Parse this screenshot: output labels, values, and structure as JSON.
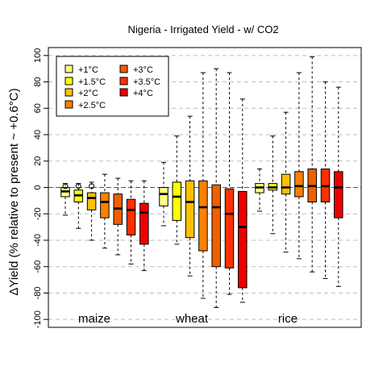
{
  "chart_data": {
    "type": "box",
    "title": "Nigeria - Irrigated Yield - w/ CO2",
    "ylabel": "ΔYield (% relative to present ~ +0.6°C)",
    "xlabel": "",
    "ylim": [
      -106,
      106
    ],
    "yticks": [
      100,
      80,
      60,
      40,
      20,
      0,
      -20,
      -40,
      -60,
      -80,
      -100
    ],
    "grid": "horizontal dashed",
    "legend_position": "top-left",
    "series": [
      {
        "name": "+1°C",
        "color": "#FFFF80"
      },
      {
        "name": "+1.5°C",
        "color": "#FFFF00"
      },
      {
        "name": "+2°C",
        "color": "#FFC000"
      },
      {
        "name": "+2.5°C",
        "color": "#FF8000"
      },
      {
        "name": "+3°C",
        "color": "#F06000"
      },
      {
        "name": "+3.5°C",
        "color": "#FF3000"
      },
      {
        "name": "+4°C",
        "color": "#EE0000"
      }
    ],
    "groups": [
      {
        "label": "maize",
        "boxes": [
          {
            "min": -21,
            "q1": -7,
            "median": -3,
            "q3": 0,
            "max": 3,
            "outliers": [
              1
            ]
          },
          {
            "min": -31,
            "q1": -11,
            "median": -6,
            "q3": -2,
            "max": 3,
            "outliers": [
              1
            ]
          },
          {
            "min": -40,
            "q1": -17,
            "median": -8,
            "q3": -4,
            "max": 4,
            "outliers": [
              1
            ]
          },
          {
            "min": -46,
            "q1": -23,
            "median": -11,
            "q3": -4,
            "max": 10,
            "outliers": []
          },
          {
            "min": -51,
            "q1": -28,
            "median": -16,
            "q3": -5,
            "max": 7,
            "outliers": []
          },
          {
            "min": -58,
            "q1": -36,
            "median": -17,
            "q3": -9,
            "max": 5,
            "outliers": []
          },
          {
            "min": -63,
            "q1": -43,
            "median": -19,
            "q3": -12,
            "max": 5,
            "outliers": []
          }
        ]
      },
      {
        "label": "wheat",
        "boxes": [
          {
            "min": -29,
            "q1": -14,
            "median": -5,
            "q3": 0,
            "max": 19,
            "outliers": []
          },
          {
            "min": -43,
            "q1": -25,
            "median": -7,
            "q3": 4,
            "max": 39,
            "outliers": []
          },
          {
            "min": -67,
            "q1": -38,
            "median": -11,
            "q3": 5,
            "max": 54,
            "outliers": []
          },
          {
            "min": -84,
            "q1": -48,
            "median": -15,
            "q3": 5,
            "max": 87,
            "outliers": []
          },
          {
            "min": -91,
            "q1": -60,
            "median": -15,
            "q3": 2,
            "max": 90,
            "outliers": []
          },
          {
            "min": -81,
            "q1": -61,
            "median": -20,
            "q3": -1,
            "max": 87,
            "outliers": []
          },
          {
            "min": -87,
            "q1": -76,
            "median": -30,
            "q3": -3,
            "max": 67,
            "outliers": []
          }
        ]
      },
      {
        "label": "rice",
        "boxes": [
          {
            "min": -18,
            "q1": -4,
            "median": 0,
            "q3": 3,
            "max": 14,
            "outliers": []
          },
          {
            "min": -35,
            "q1": -2,
            "median": 0,
            "q3": 3,
            "max": 39,
            "outliers": []
          },
          {
            "min": -49,
            "q1": -5,
            "median": 0,
            "q3": 10,
            "max": 57,
            "outliers": []
          },
          {
            "min": -54,
            "q1": -7,
            "median": 1,
            "q3": 12,
            "max": 87,
            "outliers": []
          },
          {
            "min": -64,
            "q1": -11,
            "median": 1,
            "q3": 14,
            "max": 99,
            "outliers": []
          },
          {
            "min": -69,
            "q1": -11,
            "median": 1,
            "q3": 14,
            "max": 80,
            "outliers": []
          },
          {
            "min": -75,
            "q1": -23,
            "median": 0,
            "q3": 12,
            "max": 76,
            "outliers": []
          }
        ]
      }
    ]
  }
}
